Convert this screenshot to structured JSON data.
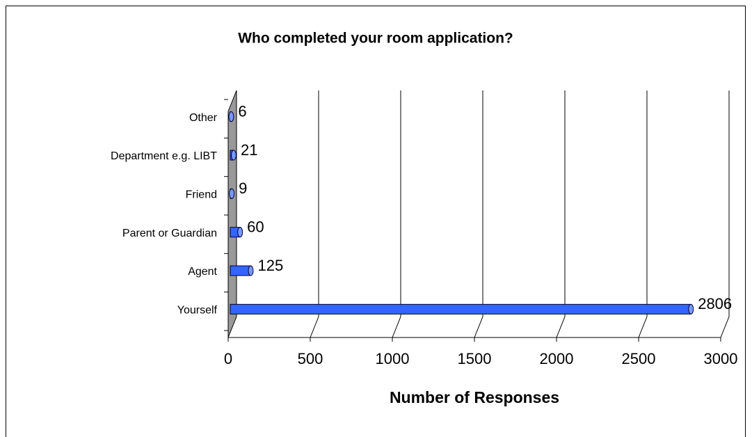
{
  "chart_data": {
    "type": "bar",
    "orientation": "horizontal",
    "title": "Who completed your room application?",
    "x_label": "Number of Responses",
    "categories": [
      "Other",
      "Department e.g. LIBT",
      "Friend",
      "Parent or Guardian",
      "Agent",
      "Yourself"
    ],
    "values": [
      6,
      21,
      9,
      60,
      125,
      2806
    ],
    "color": "#3366ff",
    "xlim": [
      0,
      3000
    ],
    "xticks": [
      0,
      500,
      1000,
      1500,
      2000,
      2500,
      3000
    ],
    "grid": true
  }
}
